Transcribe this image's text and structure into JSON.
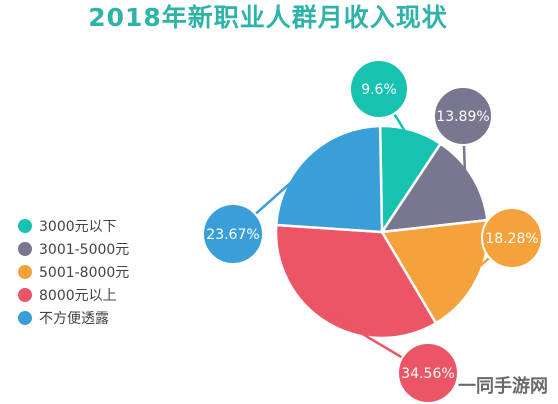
{
  "chart_data": {
    "type": "pie",
    "title": "2018年新职业人群月收入现状",
    "categories": [
      "3000元以下",
      "3001-5000元",
      "5001-8000元",
      "8000元以上",
      "不方便透露"
    ],
    "values": [
      9.6,
      13.89,
      18.28,
      34.56,
      23.67
    ],
    "data_labels": [
      "9.6%",
      "13.89%",
      "18.28%",
      "34.56%",
      "23.67%"
    ],
    "colors": [
      "#17c3b0",
      "#797690",
      "#f5a23c",
      "#ec5566",
      "#3a9fd8"
    ],
    "legend_position": "left"
  },
  "watermark": "一同手游网"
}
